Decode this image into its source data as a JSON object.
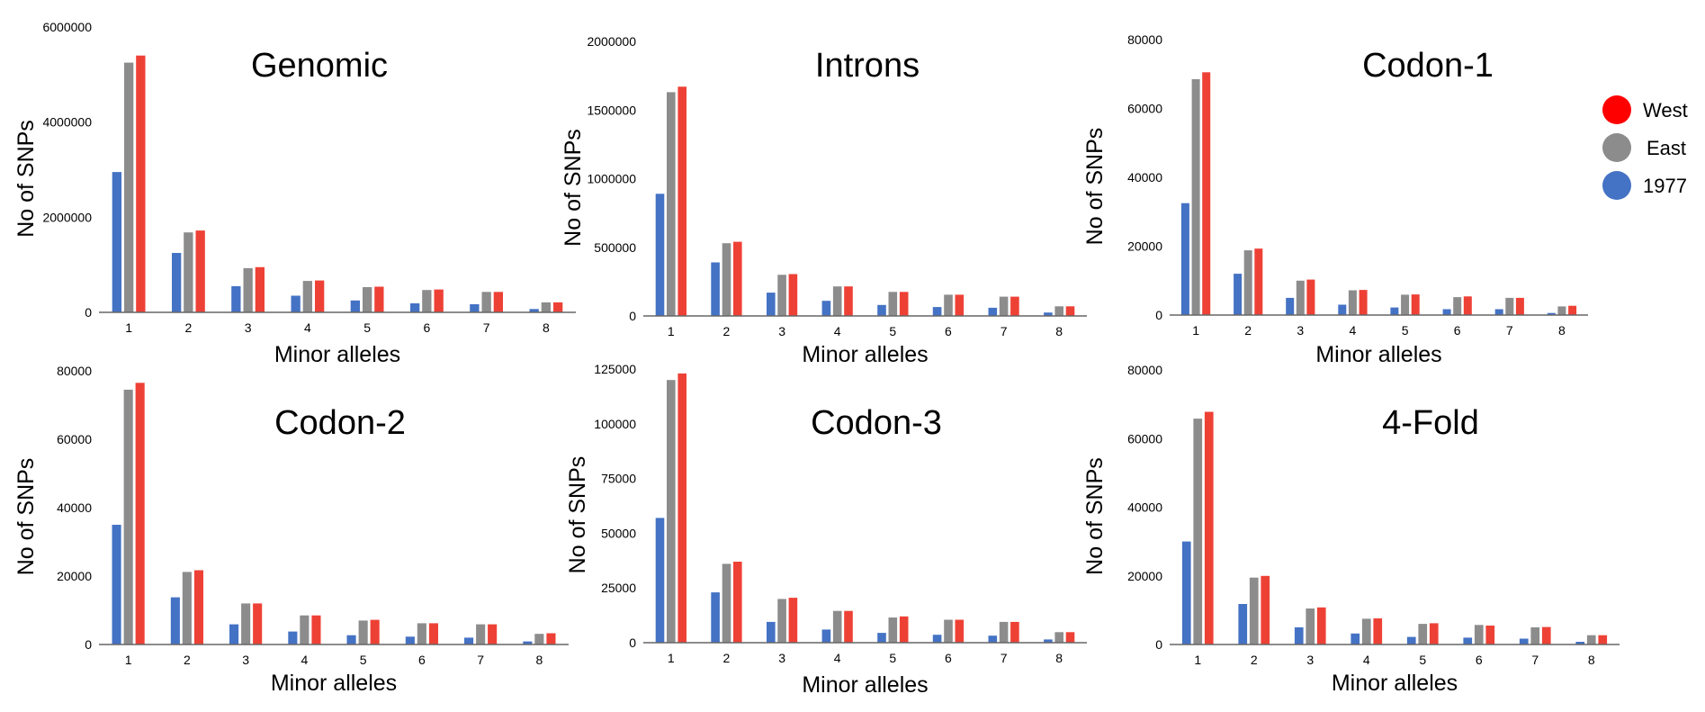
{
  "colors": {
    "1977": "#4472c4",
    "East": "#8c8c8c",
    "West": "#ee4136",
    "axis": "#666666",
    "legend_west": "#ff0000"
  },
  "legend": {
    "items": [
      {
        "label": "West",
        "color": "#ff0000"
      },
      {
        "label": "East",
        "color": "#8c8c8c"
      },
      {
        "label": "1977",
        "color": "#4472c4"
      }
    ]
  },
  "chart_data": [
    {
      "type": "bar",
      "title": "Genomic",
      "xlabel": "Minor alleles",
      "ylabel": "No of SNPs",
      "categories": [
        "1",
        "2",
        "3",
        "4",
        "5",
        "6",
        "7",
        "8"
      ],
      "ylim": [
        0,
        6000000
      ],
      "yticks": [
        0,
        2000000,
        4000000,
        6000000
      ],
      "series": [
        {
          "name": "1977",
          "values": [
            2950000,
            1250000,
            550000,
            350000,
            250000,
            190000,
            170000,
            70000
          ]
        },
        {
          "name": "East",
          "values": [
            5250000,
            1680000,
            930000,
            660000,
            530000,
            470000,
            430000,
            210000
          ]
        },
        {
          "name": "West",
          "values": [
            5400000,
            1720000,
            950000,
            670000,
            540000,
            480000,
            430000,
            210000
          ]
        }
      ]
    },
    {
      "type": "bar",
      "title": "Introns",
      "xlabel": "Minor alleles",
      "ylabel": "No of SNPs",
      "categories": [
        "1",
        "2",
        "3",
        "4",
        "5",
        "6",
        "7",
        "8"
      ],
      "ylim": [
        0,
        2000000
      ],
      "yticks": [
        0,
        500000,
        1000000,
        1500000,
        2000000
      ],
      "series": [
        {
          "name": "1977",
          "values": [
            890000,
            390000,
            170000,
            110000,
            80000,
            65000,
            60000,
            25000
          ]
        },
        {
          "name": "East",
          "values": [
            1630000,
            530000,
            300000,
            215000,
            175000,
            155000,
            140000,
            70000
          ]
        },
        {
          "name": "West",
          "values": [
            1670000,
            540000,
            305000,
            215000,
            175000,
            155000,
            140000,
            70000
          ]
        }
      ]
    },
    {
      "type": "bar",
      "title": "Codon-1",
      "xlabel": "Minor alleles",
      "ylabel": "No of SNPs",
      "categories": [
        "1",
        "2",
        "3",
        "4",
        "5",
        "6",
        "7",
        "8"
      ],
      "ylim": [
        0,
        80000
      ],
      "yticks": [
        0,
        20000,
        40000,
        60000,
        80000
      ],
      "series": [
        {
          "name": "1977",
          "values": [
            32500,
            12000,
            5000,
            3000,
            2200,
            1700,
            1700,
            600
          ]
        },
        {
          "name": "East",
          "values": [
            68500,
            18800,
            10000,
            7200,
            5900,
            5200,
            5000,
            2500
          ]
        },
        {
          "name": "West",
          "values": [
            70500,
            19300,
            10300,
            7300,
            6000,
            5400,
            5000,
            2700
          ]
        }
      ]
    },
    {
      "type": "bar",
      "title": "Codon-2",
      "xlabel": "Minor alleles",
      "ylabel": "No of SNPs",
      "categories": [
        "1",
        "2",
        "3",
        "4",
        "5",
        "6",
        "7",
        "8"
      ],
      "ylim": [
        0,
        80000
      ],
      "yticks": [
        0,
        20000,
        40000,
        60000,
        80000
      ],
      "series": [
        {
          "name": "1977",
          "values": [
            35000,
            13800,
            5900,
            3800,
            2700,
            2300,
            2000,
            900
          ]
        },
        {
          "name": "East",
          "values": [
            74500,
            21200,
            12000,
            8500,
            7000,
            6200,
            5900,
            3100
          ]
        },
        {
          "name": "West",
          "values": [
            76500,
            21700,
            12000,
            8500,
            7200,
            6200,
            5900,
            3300
          ]
        }
      ]
    },
    {
      "type": "bar",
      "title": "Codon-3",
      "xlabel": "Minor alleles",
      "ylabel": "No of SNPs",
      "categories": [
        "1",
        "2",
        "3",
        "4",
        "5",
        "6",
        "7",
        "8"
      ],
      "ylim": [
        0,
        125000
      ],
      "yticks": [
        0,
        25000,
        50000,
        75000,
        100000,
        125000
      ],
      "series": [
        {
          "name": "1977",
          "values": [
            57000,
            23000,
            9500,
            6000,
            4500,
            3600,
            3200,
            1500
          ]
        },
        {
          "name": "East",
          "values": [
            120000,
            36000,
            20000,
            14500,
            11500,
            10500,
            9500,
            4800
          ]
        },
        {
          "name": "West",
          "values": [
            123000,
            37000,
            20500,
            14500,
            12000,
            10500,
            9500,
            4800
          ]
        }
      ]
    },
    {
      "type": "bar",
      "title": "4-Fold",
      "xlabel": "Minor alleles",
      "ylabel": "No of SNPs",
      "categories": [
        "1",
        "2",
        "3",
        "4",
        "5",
        "6",
        "7",
        "8"
      ],
      "ylim": [
        0,
        80000
      ],
      "yticks": [
        0,
        20000,
        40000,
        60000,
        80000
      ],
      "series": [
        {
          "name": "1977",
          "values": [
            30000,
            11800,
            5000,
            3200,
            2200,
            2000,
            1700,
            800
          ]
        },
        {
          "name": "East",
          "values": [
            65800,
            19500,
            10500,
            7500,
            6000,
            5700,
            5000,
            2700
          ]
        },
        {
          "name": "West",
          "values": [
            67800,
            20000,
            10800,
            7600,
            6200,
            5500,
            5100,
            2700
          ]
        }
      ]
    }
  ]
}
